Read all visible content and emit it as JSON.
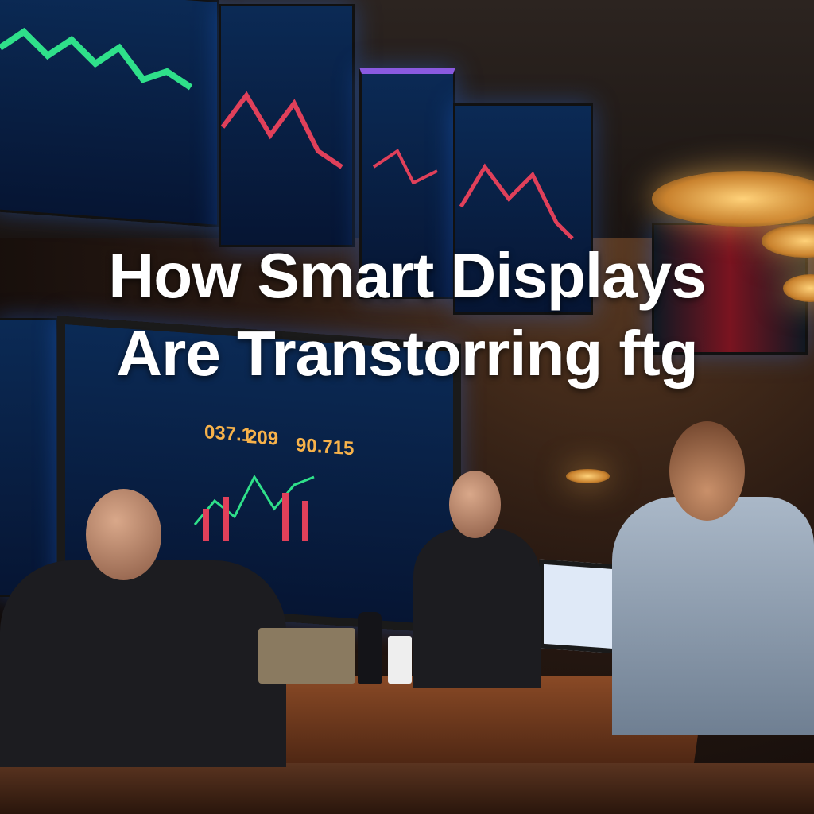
{
  "headline": {
    "line1": "How Smart Displays",
    "line2": "Are Transtorring ftg"
  },
  "monitor_readouts": [
    "037.1",
    "209",
    "90.715"
  ],
  "colors": {
    "title_text": "#ffffff",
    "screen_blue": "#0b2a55",
    "chart_green": "#2fe08a",
    "chart_red": "#e0405a",
    "readout_orange": "#f7b24a",
    "lamp_amber": "#ffd27a"
  }
}
